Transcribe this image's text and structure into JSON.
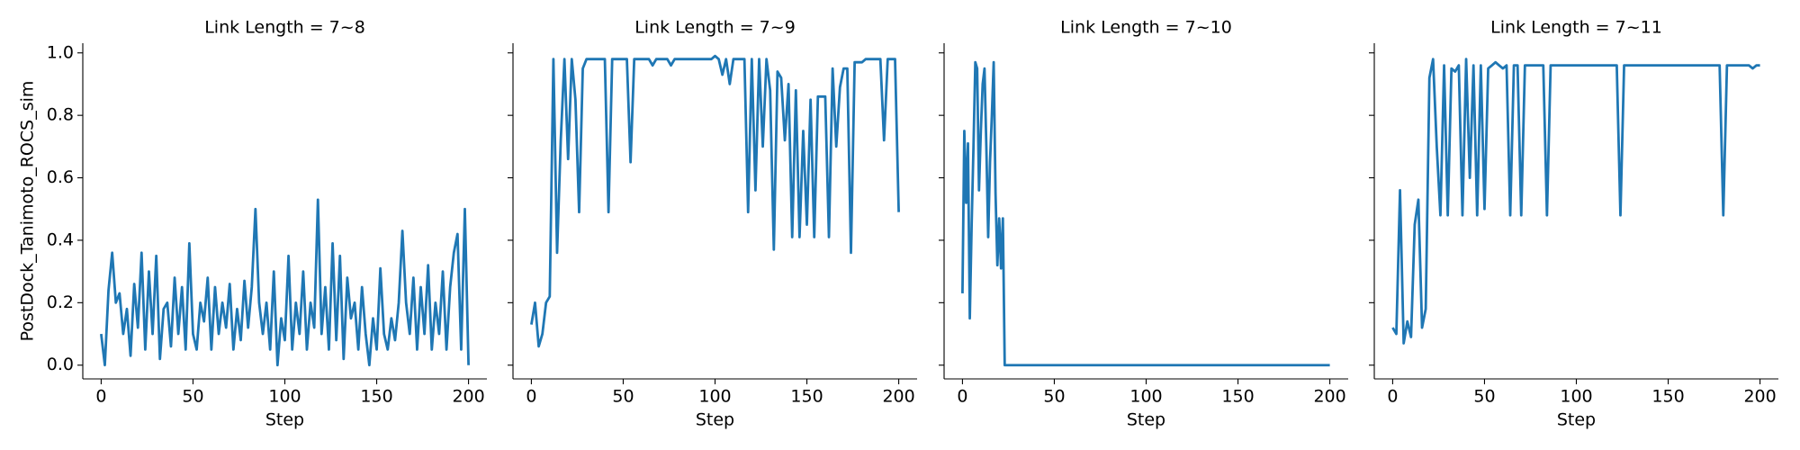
{
  "chart_data": [
    {
      "type": "line",
      "title": "Link Length = 7~8",
      "xlabel": "Step",
      "ylabel": "PostDock_Tanimoto_ROCS_sim",
      "xlim": [
        -10,
        210
      ],
      "xticks": [
        0,
        50,
        100,
        150,
        200
      ],
      "ylim": [
        -0.044,
        1.031
      ],
      "yticks": [
        {
          "value": 0,
          "label": "0.0"
        },
        {
          "value": 0.2,
          "label": "0.2"
        },
        {
          "value": 0.4,
          "label": "0.4"
        },
        {
          "value": 0.6,
          "label": "0.6"
        },
        {
          "value": 0.8,
          "label": "0.8"
        },
        {
          "value": 1,
          "label": "1.0"
        }
      ],
      "color": "#1f77b4",
      "x": [
        0,
        2,
        4,
        6,
        8,
        10,
        12,
        14,
        16,
        18,
        20,
        22,
        24,
        26,
        28,
        30,
        32,
        34,
        36,
        38,
        40,
        42,
        44,
        46,
        48,
        50,
        52,
        54,
        56,
        58,
        60,
        62,
        64,
        66,
        68,
        70,
        72,
        74,
        76,
        78,
        80,
        82,
        84,
        86,
        88,
        90,
        92,
        94,
        96,
        98,
        100,
        102,
        104,
        106,
        108,
        110,
        112,
        114,
        116,
        118,
        120,
        122,
        124,
        126,
        128,
        130,
        132,
        134,
        136,
        138,
        140,
        142,
        144,
        146,
        148,
        150,
        152,
        154,
        156,
        158,
        160,
        162,
        164,
        166,
        168,
        170,
        172,
        174,
        176,
        178,
        180,
        182,
        184,
        186,
        188,
        190,
        192,
        194,
        196,
        198,
        200
      ],
      "values": [
        0.1,
        0.0,
        0.24,
        0.36,
        0.2,
        0.23,
        0.1,
        0.18,
        0.03,
        0.26,
        0.12,
        0.36,
        0.05,
        0.3,
        0.1,
        0.35,
        0.02,
        0.18,
        0.2,
        0.06,
        0.28,
        0.1,
        0.25,
        0.05,
        0.39,
        0.1,
        0.05,
        0.2,
        0.14,
        0.28,
        0.05,
        0.25,
        0.1,
        0.2,
        0.12,
        0.26,
        0.05,
        0.18,
        0.08,
        0.27,
        0.12,
        0.25,
        0.5,
        0.2,
        0.1,
        0.2,
        0.05,
        0.3,
        0.0,
        0.15,
        0.08,
        0.35,
        0.05,
        0.2,
        0.1,
        0.3,
        0.05,
        0.2,
        0.12,
        0.53,
        0.1,
        0.25,
        0.05,
        0.39,
        0.08,
        0.35,
        0.02,
        0.28,
        0.15,
        0.2,
        0.05,
        0.25,
        0.1,
        0.0,
        0.15,
        0.05,
        0.31,
        0.1,
        0.05,
        0.15,
        0.08,
        0.2,
        0.43,
        0.2,
        0.1,
        0.28,
        0.05,
        0.25,
        0.1,
        0.32,
        0.05,
        0.2,
        0.1,
        0.3,
        0.05,
        0.25,
        0.36,
        0.42,
        0.05,
        0.5,
        0.0
      ]
    },
    {
      "type": "line",
      "title": "Link Length = 7~9",
      "xlabel": "Step",
      "xlim": [
        -10,
        210
      ],
      "xticks": [
        0,
        50,
        100,
        150,
        200
      ],
      "color": "#1f77b4",
      "x": [
        0,
        2,
        4,
        6,
        8,
        10,
        12,
        14,
        16,
        18,
        20,
        22,
        24,
        26,
        28,
        30,
        32,
        34,
        36,
        38,
        40,
        42,
        44,
        46,
        48,
        50,
        52,
        54,
        56,
        58,
        60,
        62,
        64,
        66,
        68,
        70,
        72,
        74,
        76,
        78,
        80,
        82,
        84,
        86,
        88,
        90,
        92,
        94,
        96,
        98,
        100,
        102,
        104,
        106,
        108,
        110,
        112,
        114,
        116,
        118,
        120,
        122,
        124,
        126,
        128,
        130,
        132,
        134,
        136,
        138,
        140,
        142,
        144,
        146,
        148,
        150,
        152,
        154,
        156,
        158,
        160,
        162,
        164,
        166,
        168,
        170,
        172,
        174,
        176,
        178,
        180,
        182,
        184,
        186,
        188,
        190,
        192,
        194,
        196,
        198,
        200
      ],
      "values": [
        0.13,
        0.2,
        0.06,
        0.1,
        0.2,
        0.22,
        0.98,
        0.36,
        0.72,
        0.98,
        0.66,
        0.98,
        0.85,
        0.49,
        0.95,
        0.98,
        0.98,
        0.98,
        0.98,
        0.98,
        0.98,
        0.49,
        0.98,
        0.98,
        0.98,
        0.98,
        0.98,
        0.65,
        0.98,
        0.98,
        0.98,
        0.98,
        0.98,
        0.96,
        0.98,
        0.98,
        0.98,
        0.98,
        0.96,
        0.98,
        0.98,
        0.98,
        0.98,
        0.98,
        0.98,
        0.98,
        0.98,
        0.98,
        0.98,
        0.98,
        0.99,
        0.98,
        0.93,
        0.98,
        0.9,
        0.98,
        0.98,
        0.98,
        0.98,
        0.49,
        0.98,
        0.56,
        0.98,
        0.7,
        0.98,
        0.88,
        0.37,
        0.94,
        0.92,
        0.72,
        0.9,
        0.41,
        0.88,
        0.41,
        0.75,
        0.45,
        0.85,
        0.41,
        0.86,
        0.86,
        0.86,
        0.41,
        0.95,
        0.7,
        0.89,
        0.95,
        0.95,
        0.36,
        0.97,
        0.97,
        0.97,
        0.98,
        0.98,
        0.98,
        0.98,
        0.98,
        0.72,
        0.98,
        0.98,
        0.98,
        0.49
      ]
    },
    {
      "type": "line",
      "title": "Link Length = 7~10",
      "xlabel": "Step",
      "xlim": [
        -10,
        210
      ],
      "xticks": [
        0,
        50,
        100,
        150,
        200
      ],
      "color": "#1f77b4",
      "x": [
        0,
        1,
        2,
        3,
        4,
        5,
        6,
        7,
        8,
        9,
        10,
        11,
        12,
        13,
        14,
        15,
        16,
        17,
        18,
        19,
        20,
        21,
        22,
        23,
        24,
        50,
        100,
        150,
        200
      ],
      "values": [
        0.23,
        0.75,
        0.52,
        0.71,
        0.15,
        0.45,
        0.7,
        0.97,
        0.95,
        0.56,
        0.75,
        0.9,
        0.95,
        0.7,
        0.41,
        0.65,
        0.8,
        0.97,
        0.55,
        0.32,
        0.47,
        0.31,
        0.47,
        0.0,
        0.0,
        0.0,
        0.0,
        0.0,
        0.0
      ]
    },
    {
      "type": "line",
      "title": "Link Length = 7~11",
      "xlabel": "Step",
      "xlim": [
        -10,
        210
      ],
      "xticks": [
        0,
        50,
        100,
        150,
        200
      ],
      "color": "#1f77b4",
      "x": [
        0,
        2,
        4,
        6,
        8,
        10,
        12,
        14,
        16,
        18,
        20,
        22,
        24,
        26,
        28,
        30,
        32,
        34,
        36,
        38,
        40,
        42,
        44,
        46,
        48,
        50,
        52,
        54,
        56,
        58,
        60,
        62,
        64,
        66,
        68,
        70,
        72,
        74,
        76,
        78,
        80,
        82,
        84,
        86,
        88,
        90,
        92,
        94,
        96,
        98,
        100,
        102,
        104,
        106,
        108,
        110,
        112,
        114,
        116,
        118,
        120,
        122,
        124,
        126,
        128,
        130,
        132,
        134,
        136,
        138,
        140,
        142,
        144,
        146,
        148,
        150,
        152,
        154,
        156,
        158,
        160,
        162,
        164,
        166,
        168,
        170,
        172,
        174,
        176,
        178,
        180,
        182,
        184,
        186,
        188,
        190,
        192,
        194,
        196,
        198,
        200
      ],
      "values": [
        0.12,
        0.1,
        0.56,
        0.07,
        0.14,
        0.09,
        0.45,
        0.53,
        0.12,
        0.18,
        0.92,
        0.98,
        0.7,
        0.48,
        0.96,
        0.48,
        0.95,
        0.94,
        0.96,
        0.48,
        0.98,
        0.6,
        0.96,
        0.48,
        0.96,
        0.5,
        0.95,
        0.96,
        0.97,
        0.96,
        0.95,
        0.96,
        0.48,
        0.96,
        0.96,
        0.48,
        0.96,
        0.96,
        0.96,
        0.96,
        0.96,
        0.96,
        0.48,
        0.96,
        0.96,
        0.96,
        0.96,
        0.96,
        0.96,
        0.96,
        0.96,
        0.96,
        0.96,
        0.96,
        0.96,
        0.96,
        0.96,
        0.96,
        0.96,
        0.96,
        0.96,
        0.96,
        0.48,
        0.96,
        0.96,
        0.96,
        0.96,
        0.96,
        0.96,
        0.96,
        0.96,
        0.96,
        0.96,
        0.96,
        0.96,
        0.96,
        0.96,
        0.96,
        0.96,
        0.96,
        0.96,
        0.96,
        0.96,
        0.96,
        0.96,
        0.96,
        0.96,
        0.96,
        0.96,
        0.96,
        0.48,
        0.96,
        0.96,
        0.96,
        0.96,
        0.96,
        0.96,
        0.96,
        0.95,
        0.96,
        0.96
      ]
    }
  ]
}
